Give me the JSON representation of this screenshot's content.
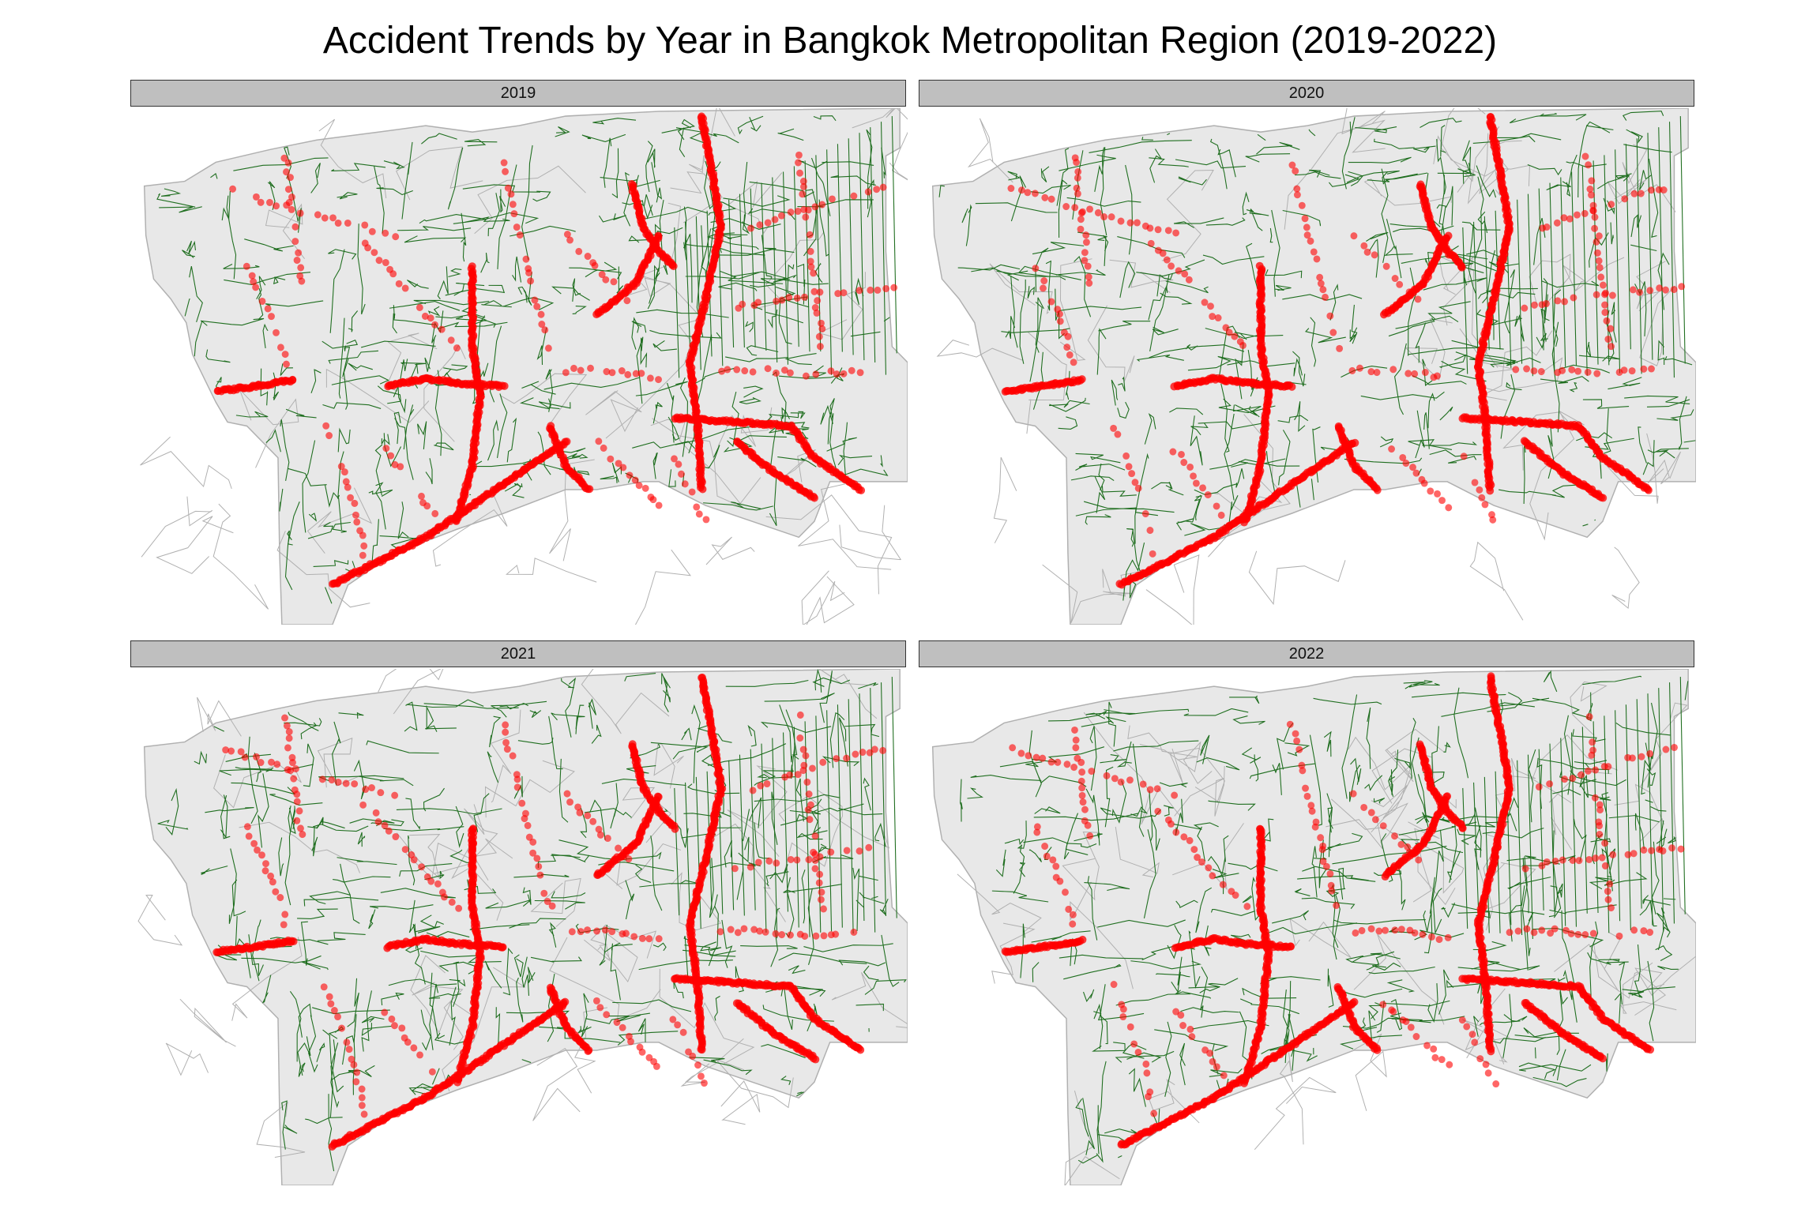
{
  "figure": {
    "title": "Accident Trends by Year in Bangkok Metropolitan Region (2019-2022)"
  },
  "colors": {
    "background": "#ffffff",
    "land": "#e8e8e8",
    "district_border": "#b0b0b0",
    "roads": "#1f6e1f",
    "accidents": "#ff0000",
    "strip": "#bfbfbf"
  },
  "panels": [
    {
      "label": "2019",
      "year": 2019
    },
    {
      "label": "2020",
      "year": 2020
    },
    {
      "label": "2021",
      "year": 2021
    },
    {
      "label": "2022",
      "year": 2022
    }
  ]
}
